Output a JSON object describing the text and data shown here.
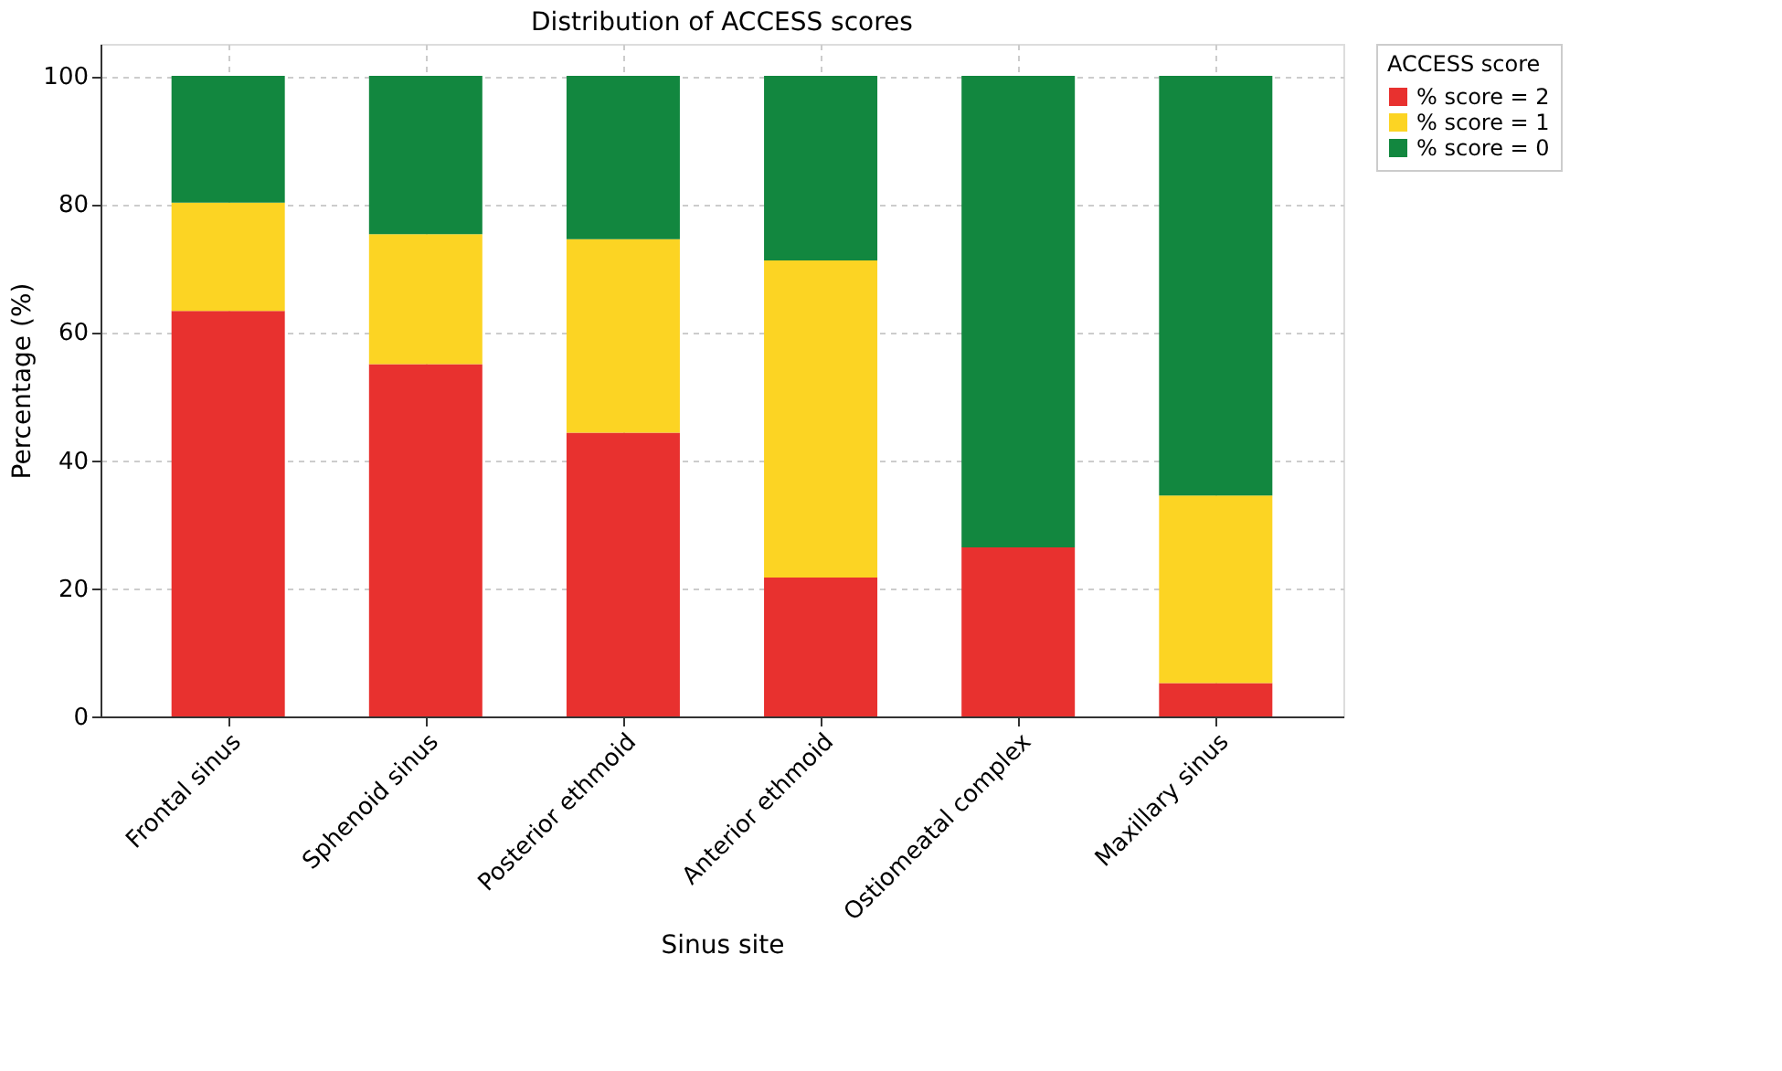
{
  "chart_data": {
    "type": "bar",
    "stacked": true,
    "title": "Distribution of ACCESS scores",
    "xlabel": "Sinus site",
    "ylabel": "Percentage (%)",
    "legend_title": "ACCESS score",
    "categories": [
      "Frontal sinus",
      "Sphenoid sinus",
      "Posterior ethmoid",
      "Anterior ethmoid",
      "Ostiomeatal complex",
      "Maxillary sinus"
    ],
    "series": [
      {
        "name": "% score = 2",
        "color": "#e8312f",
        "values": [
          63.3,
          55.0,
          44.3,
          21.7,
          26.4,
          5.2
        ]
      },
      {
        "name": "% score = 1",
        "color": "#fcd423",
        "values": [
          16.9,
          20.3,
          30.2,
          49.5,
          0,
          29.3
        ]
      },
      {
        "name": "% score = 0",
        "color": "#12873f",
        "values": [
          19.8,
          24.7,
          25.5,
          28.8,
          73.6,
          65.5
        ]
      }
    ],
    "ylim": [
      0,
      105
    ],
    "yticks": [
      0,
      20,
      40,
      60,
      80,
      100
    ],
    "grid": true,
    "legend": "top right"
  }
}
